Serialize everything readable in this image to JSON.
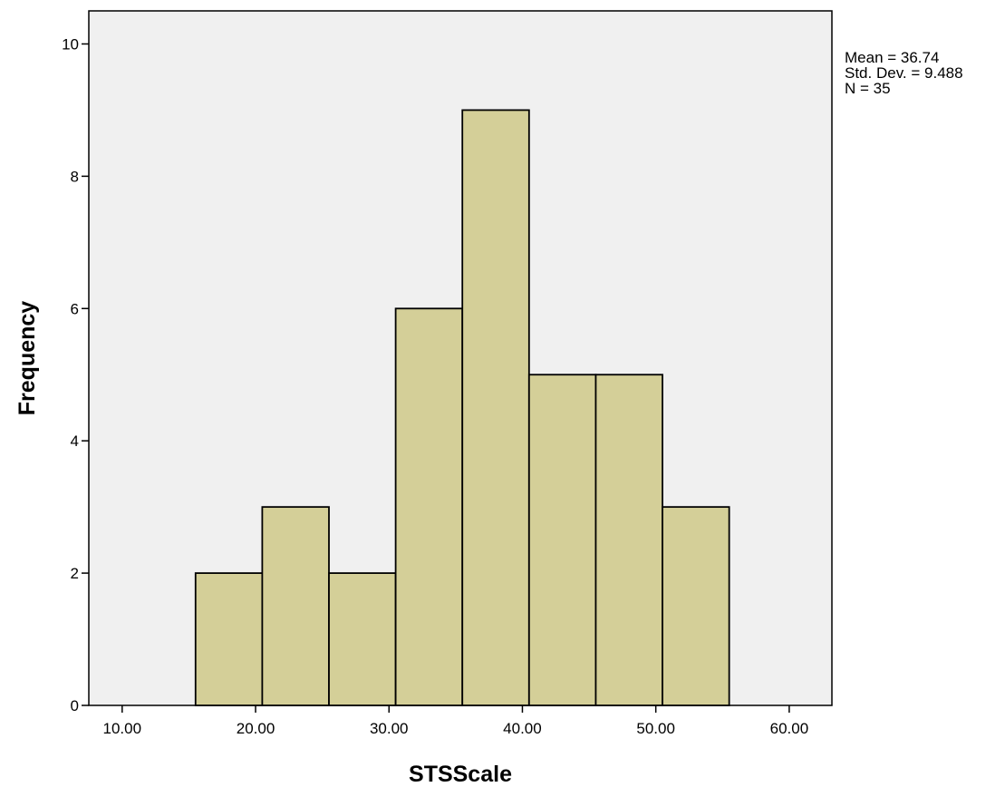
{
  "chart_data": {
    "type": "bar",
    "subtype": "histogram",
    "xlabel": "STSScale",
    "ylabel": "Frequency",
    "xlim": [
      7.5,
      63.2
    ],
    "ylim": [
      0,
      10.5
    ],
    "x_ticks": [
      "10.00",
      "20.00",
      "30.00",
      "40.00",
      "50.00",
      "60.00"
    ],
    "x_tick_values": [
      10,
      20,
      30,
      40,
      50,
      60
    ],
    "y_ticks": [
      "0",
      "2",
      "4",
      "6",
      "8",
      "10"
    ],
    "y_tick_values": [
      0,
      2,
      4,
      6,
      8,
      10
    ],
    "bins": [
      {
        "start": 15.5,
        "end": 20.5,
        "value": 2
      },
      {
        "start": 20.5,
        "end": 25.5,
        "value": 3
      },
      {
        "start": 25.5,
        "end": 30.5,
        "value": 2
      },
      {
        "start": 30.5,
        "end": 35.5,
        "value": 6
      },
      {
        "start": 35.5,
        "end": 40.5,
        "value": 9
      },
      {
        "start": 40.5,
        "end": 45.5,
        "value": 5
      },
      {
        "start": 45.5,
        "end": 50.5,
        "value": 5
      },
      {
        "start": 50.5,
        "end": 55.5,
        "value": 3
      }
    ],
    "grid": false,
    "colors": {
      "bar_fill": "#d4cf98",
      "bar_stroke": "#000000",
      "plot_bg": "#f0f0f0"
    },
    "stats": {
      "mean": "Mean = 36.74",
      "sd": "Std. Dev. = 9.488",
      "n": "N = 35"
    }
  }
}
